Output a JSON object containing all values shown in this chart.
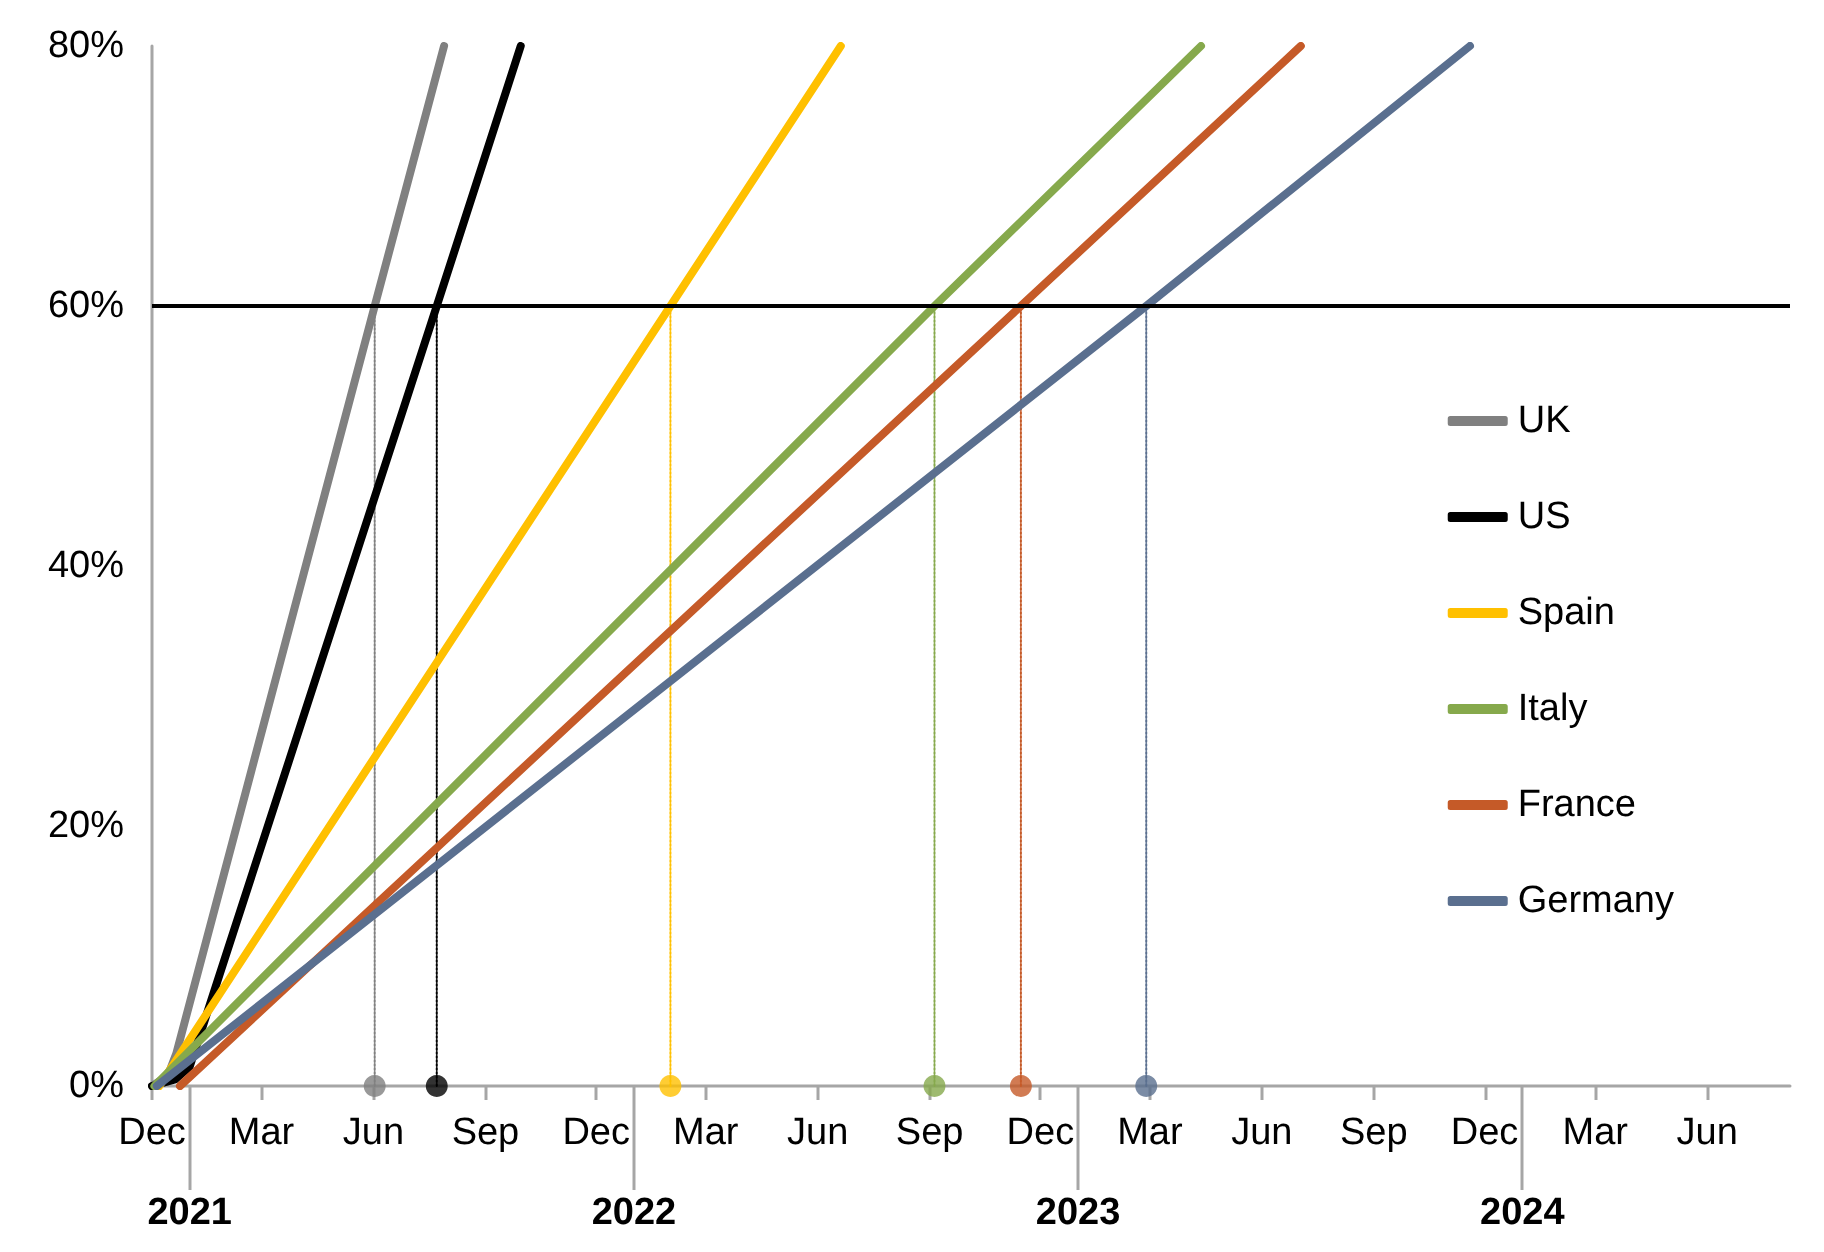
{
  "chart_data": {
    "type": "line",
    "marker": "none",
    "grid": false,
    "legend": "right",
    "xlim": [
      "2020-12-01",
      "2024-08-08"
    ],
    "xticks": [
      {
        "value": "2020-12-01",
        "label": "Dec"
      },
      {
        "value": "2021-03-01",
        "label": "Mar"
      },
      {
        "value": "2021-06-01",
        "label": "Jun"
      },
      {
        "value": "2021-09-01",
        "label": "Sep"
      },
      {
        "value": "2021-12-01",
        "label": "Dec"
      },
      {
        "value": "2022-03-01",
        "label": "Mar"
      },
      {
        "value": "2022-06-01",
        "label": "Jun"
      },
      {
        "value": "2022-09-01",
        "label": "Sep"
      },
      {
        "value": "2022-12-01",
        "label": "Dec"
      },
      {
        "value": "2023-03-01",
        "label": "Mar"
      },
      {
        "value": "2023-06-01",
        "label": "Jun"
      },
      {
        "value": "2023-09-01",
        "label": "Sep"
      },
      {
        "value": "2023-12-01",
        "label": "Dec"
      },
      {
        "value": "2024-03-01",
        "label": "Mar"
      },
      {
        "value": "2024-06-01",
        "label": "Jun"
      }
    ],
    "x2lim": [
      "2020-12-01",
      "2024-08-08"
    ],
    "x2ticks": [
      {
        "value": "2021-01-01",
        "label": "2021"
      },
      {
        "value": "2022-01-01",
        "label": "2022"
      },
      {
        "value": "2023-01-01",
        "label": "2023"
      },
      {
        "value": "2024-01-01",
        "label": "2024"
      }
    ],
    "ylim": [
      0,
      80
    ],
    "yticks": [
      {
        "value": 0,
        "label": "0%"
      },
      {
        "value": 20,
        "label": "20%"
      },
      {
        "value": 40,
        "label": "40%"
      },
      {
        "value": 60,
        "label": "60%"
      },
      {
        "value": 80,
        "label": "80%"
      }
    ],
    "ref_lines": [
      {
        "axis": "y",
        "value": 60,
        "color": "#000000"
      }
    ],
    "series": [
      {
        "name": "UK",
        "color": "#808080",
        "x": [
          "2020-12-01",
          "2020-12-14",
          "2020-12-21",
          "2021-06-02",
          "2021-07-29"
        ],
        "values": [
          0,
          0.8,
          2.5,
          60,
          80
        ]
      },
      {
        "name": "US",
        "color": "#000000",
        "x": [
          "2020-12-01",
          "2020-12-20",
          "2021-01-01",
          "2021-07-23",
          "2021-09-30"
        ],
        "values": [
          0,
          0.5,
          1.5,
          60,
          80
        ]
      },
      {
        "name": "Spain",
        "color": "#ffc000",
        "x": [
          "2020-12-07",
          "2022-01-31",
          "2022-06-20"
        ],
        "values": [
          0,
          60,
          80
        ]
      },
      {
        "name": "Italy",
        "color": "#86a94c",
        "x": [
          "2020-12-03",
          "2022-09-05",
          "2023-04-12"
        ],
        "values": [
          0,
          60,
          80
        ]
      },
      {
        "name": "France",
        "color": "#c55a28",
        "x": [
          "2020-12-24",
          "2022-11-15",
          "2023-07-03"
        ],
        "values": [
          0,
          60,
          80
        ]
      },
      {
        "name": "Germany",
        "color": "#5a6f8f",
        "x": [
          "2020-12-05",
          "2023-02-26",
          "2023-11-19"
        ],
        "values": [
          0,
          60,
          80
        ]
      },
      {
        "color": "#808080",
        "line_style": "dotted",
        "x": [
          "2021-06-02",
          "2021-06-02"
        ],
        "values": [
          0,
          60
        ]
      },
      {
        "color": "#000000",
        "line_style": "dotted",
        "x": [
          "2021-07-23",
          "2021-07-23"
        ],
        "values": [
          0,
          60
        ]
      },
      {
        "color": "#ffc000",
        "line_style": "dotted",
        "x": [
          "2022-01-31",
          "2022-01-31"
        ],
        "values": [
          0,
          60
        ]
      },
      {
        "color": "#86a94c",
        "line_style": "dotted",
        "x": [
          "2022-09-05",
          "2022-09-05"
        ],
        "values": [
          0,
          60
        ]
      },
      {
        "color": "#c55a28",
        "line_style": "dotted",
        "x": [
          "2022-11-15",
          "2022-11-15"
        ],
        "values": [
          0,
          60
        ]
      },
      {
        "color": "#5a6f8f",
        "line_style": "dotted",
        "x": [
          "2023-02-26",
          "2023-02-26"
        ],
        "values": [
          0,
          60
        ]
      },
      {
        "type": "scatter",
        "marker": "circle",
        "x": [
          "2021-06-02",
          "2021-07-23",
          "2022-01-31",
          "2022-09-05",
          "2022-11-15",
          "2023-02-26"
        ],
        "values": [
          0,
          0,
          0,
          0,
          0,
          0
        ],
        "colors": [
          "#808080",
          "#000000",
          "#ffc000",
          "#86a94c",
          "#c55a28",
          "#5a6f8f"
        ]
      }
    ]
  }
}
